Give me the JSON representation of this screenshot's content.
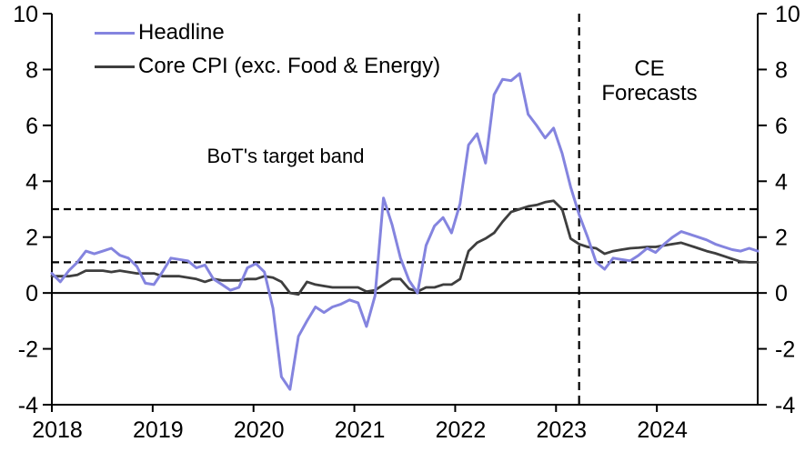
{
  "legend": {
    "items": [
      {
        "label": "Headline",
        "color": "#8484DF"
      },
      {
        "label": "Core CPI (exc. Food & Energy)",
        "color": "#3E3E3E"
      }
    ]
  },
  "annotations": {
    "target_band_label": "BoT's target band",
    "forecast_label": "CE\nForecasts"
  },
  "chart_data": {
    "type": "line",
    "title": "",
    "xlabel": "",
    "ylabel": "",
    "x_unit": "month",
    "x_start": "2018-01",
    "x_end": "2024-12",
    "xticks": [
      "2018",
      "2019",
      "2020",
      "2021",
      "2022",
      "2023",
      "2024"
    ],
    "ylim": [
      -4,
      10
    ],
    "yticks": [
      10,
      8,
      6,
      4,
      2,
      0,
      -2,
      -4
    ],
    "dual_y_axis": true,
    "grid": false,
    "zero_line": 0,
    "target_band": {
      "lower": 1.1,
      "upper": 3.0,
      "style": "dashed"
    },
    "forecast_divider": "2023-03",
    "axis_color": "#000000",
    "legend_position": "top-left",
    "series": [
      {
        "name": "Headline",
        "color": "#8484DF",
        "width": 3,
        "values": [
          0.7,
          0.4,
          0.8,
          1.1,
          1.5,
          1.4,
          1.5,
          1.6,
          1.35,
          1.25,
          0.95,
          0.35,
          0.3,
          0.75,
          1.25,
          1.2,
          1.15,
          0.9,
          1.0,
          0.5,
          0.3,
          0.1,
          0.2,
          0.9,
          1.05,
          0.75,
          -0.55,
          -3.0,
          -3.45,
          -1.55,
          -1.0,
          -0.5,
          -0.7,
          -0.5,
          -0.4,
          -0.25,
          -0.35,
          -1.2,
          -0.1,
          3.4,
          2.45,
          1.25,
          0.45,
          0.0,
          1.7,
          2.4,
          2.7,
          2.15,
          3.2,
          5.3,
          5.7,
          4.65,
          7.1,
          7.65,
          7.6,
          7.85,
          6.4,
          6.0,
          5.55,
          5.9,
          5.0,
          3.8,
          2.8,
          2.0,
          1.1,
          0.85,
          1.25,
          1.2,
          1.15,
          1.35,
          1.6,
          1.45,
          1.75,
          2.0,
          2.2,
          2.1,
          2.0,
          1.9,
          1.75,
          1.65,
          1.55,
          1.5,
          1.6,
          1.5
        ]
      },
      {
        "name": "Core CPI (exc. Food & Energy)",
        "color": "#3E3E3E",
        "width": 2.8,
        "values": [
          0.6,
          0.6,
          0.6,
          0.65,
          0.8,
          0.8,
          0.8,
          0.75,
          0.8,
          0.75,
          0.7,
          0.7,
          0.7,
          0.6,
          0.6,
          0.6,
          0.55,
          0.5,
          0.4,
          0.5,
          0.45,
          0.45,
          0.45,
          0.5,
          0.5,
          0.6,
          0.55,
          0.4,
          0.0,
          -0.05,
          0.4,
          0.3,
          0.25,
          0.2,
          0.2,
          0.2,
          0.2,
          0.05,
          0.1,
          0.3,
          0.5,
          0.5,
          0.15,
          0.05,
          0.2,
          0.2,
          0.3,
          0.3,
          0.5,
          1.5,
          1.8,
          1.95,
          2.15,
          2.55,
          2.9,
          3.0,
          3.1,
          3.15,
          3.25,
          3.3,
          3.0,
          1.95,
          1.75,
          1.65,
          1.6,
          1.4,
          1.5,
          1.55,
          1.6,
          1.62,
          1.65,
          1.65,
          1.7,
          1.75,
          1.8,
          1.7,
          1.6,
          1.5,
          1.42,
          1.32,
          1.22,
          1.12,
          1.1,
          1.1
        ]
      }
    ]
  }
}
